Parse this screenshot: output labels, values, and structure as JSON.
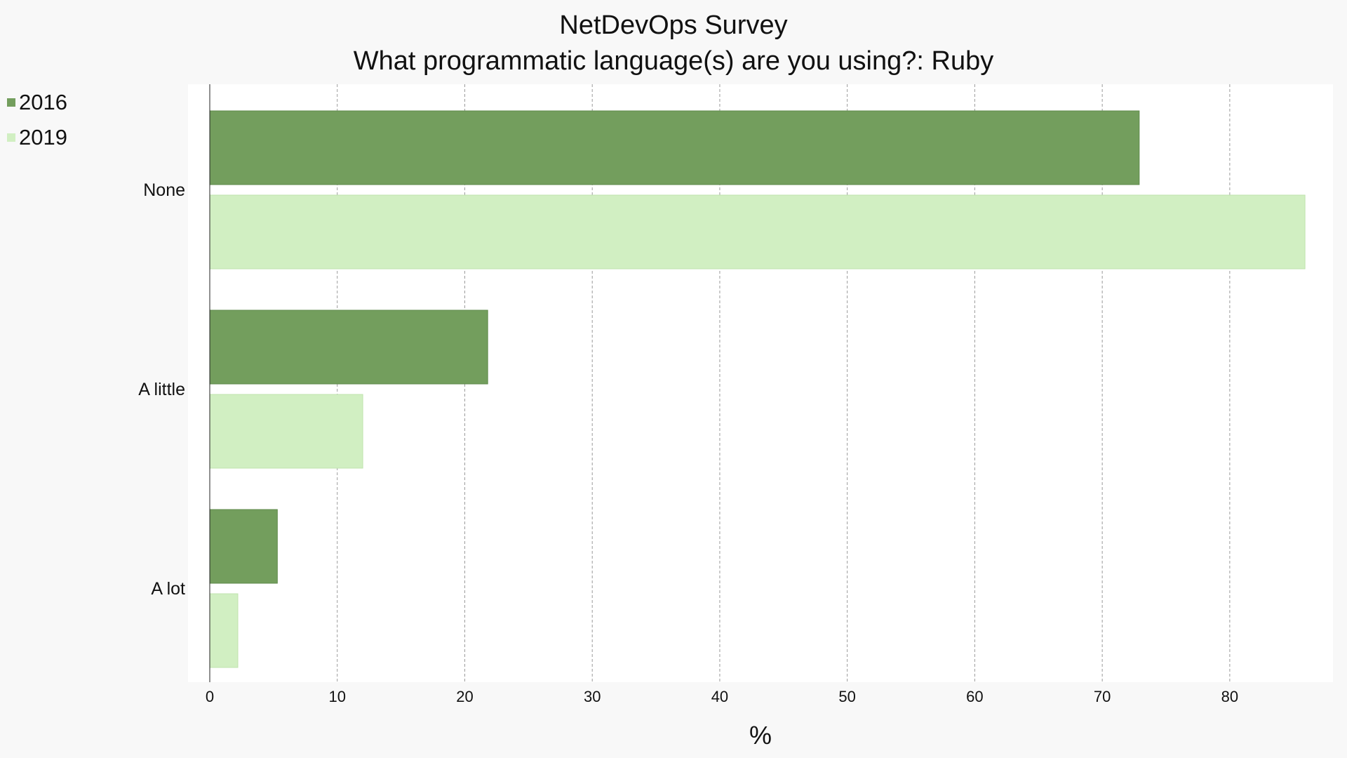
{
  "chart_data": {
    "type": "bar",
    "orientation": "horizontal",
    "title": "NetDevOps Survey",
    "subtitle": "What programmatic language(s) are you using?: Ruby",
    "xlabel": "%",
    "ylabel": "",
    "categories": [
      "None",
      "A little",
      "A lot"
    ],
    "series": [
      {
        "name": "2016",
        "color": "#739e5d",
        "values": [
          72.9,
          21.8,
          5.3
        ]
      },
      {
        "name": "2019",
        "color": "#d1efc2",
        "values": [
          85.9,
          12.0,
          2.2
        ]
      }
    ],
    "xlim": [
      0,
      86.5
    ],
    "xticks": [
      0,
      10,
      20,
      30,
      40,
      50,
      60,
      70,
      80
    ],
    "grid": true,
    "legend_position": "top-left"
  }
}
